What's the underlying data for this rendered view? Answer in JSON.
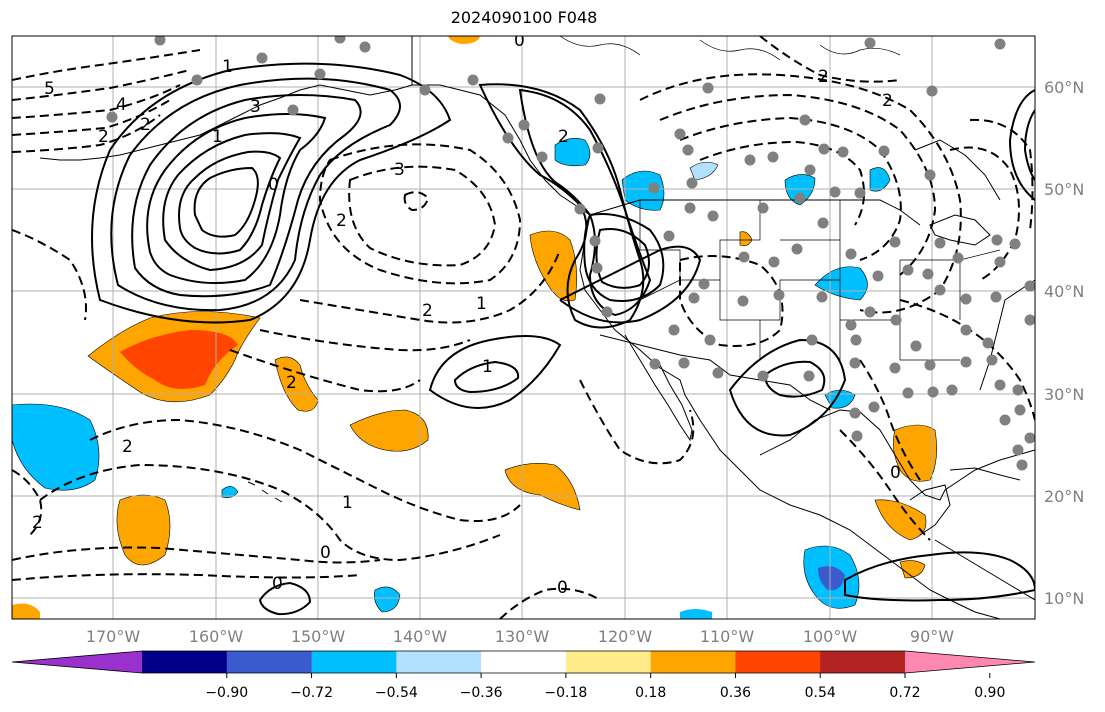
{
  "title": "2024090100 F048",
  "map": {
    "projection": "lat-lon",
    "lon_range": [
      "~178°W",
      "~78°W"
    ],
    "lat_range": [
      "~8°N",
      "~65°N"
    ],
    "lon_ticks": [
      "170°W",
      "160°W",
      "150°W",
      "140°W",
      "130°W",
      "120°W",
      "110°W",
      "100°W",
      "90°W"
    ],
    "lat_ticks": [
      "60°N",
      "50°N",
      "40°N",
      "30°N",
      "20°N",
      "10°N"
    ],
    "grid": true,
    "contour_style": {
      "positive": "solid",
      "negative": "dashed",
      "color": "#000000"
    },
    "contour_labels": [
      "5",
      "4",
      "3",
      "2",
      "2",
      "1",
      "3",
      "2",
      "2",
      "1",
      "1",
      "0",
      "2",
      "2",
      "1",
      "0",
      "0",
      "0",
      "2",
      "2",
      "2",
      "0",
      "0",
      "1",
      "2"
    ],
    "station_marker_color": "#808080"
  },
  "colorbar": {
    "orientation": "horizontal",
    "extend": "both",
    "colors": [
      "#9932cc",
      "#00008b",
      "#3a5bcd",
      "#00bfff",
      "#b0e2ff",
      "#ffffff",
      "#ffec8b",
      "#ffa500",
      "#ff4500",
      "#b22222",
      "#ff88b0"
    ],
    "tick_labels": [
      "−0.90",
      "−0.72",
      "−0.54",
      "−0.36",
      "−0.18",
      "0.18",
      "0.36",
      "0.54",
      "0.72",
      "0.90"
    ]
  }
}
